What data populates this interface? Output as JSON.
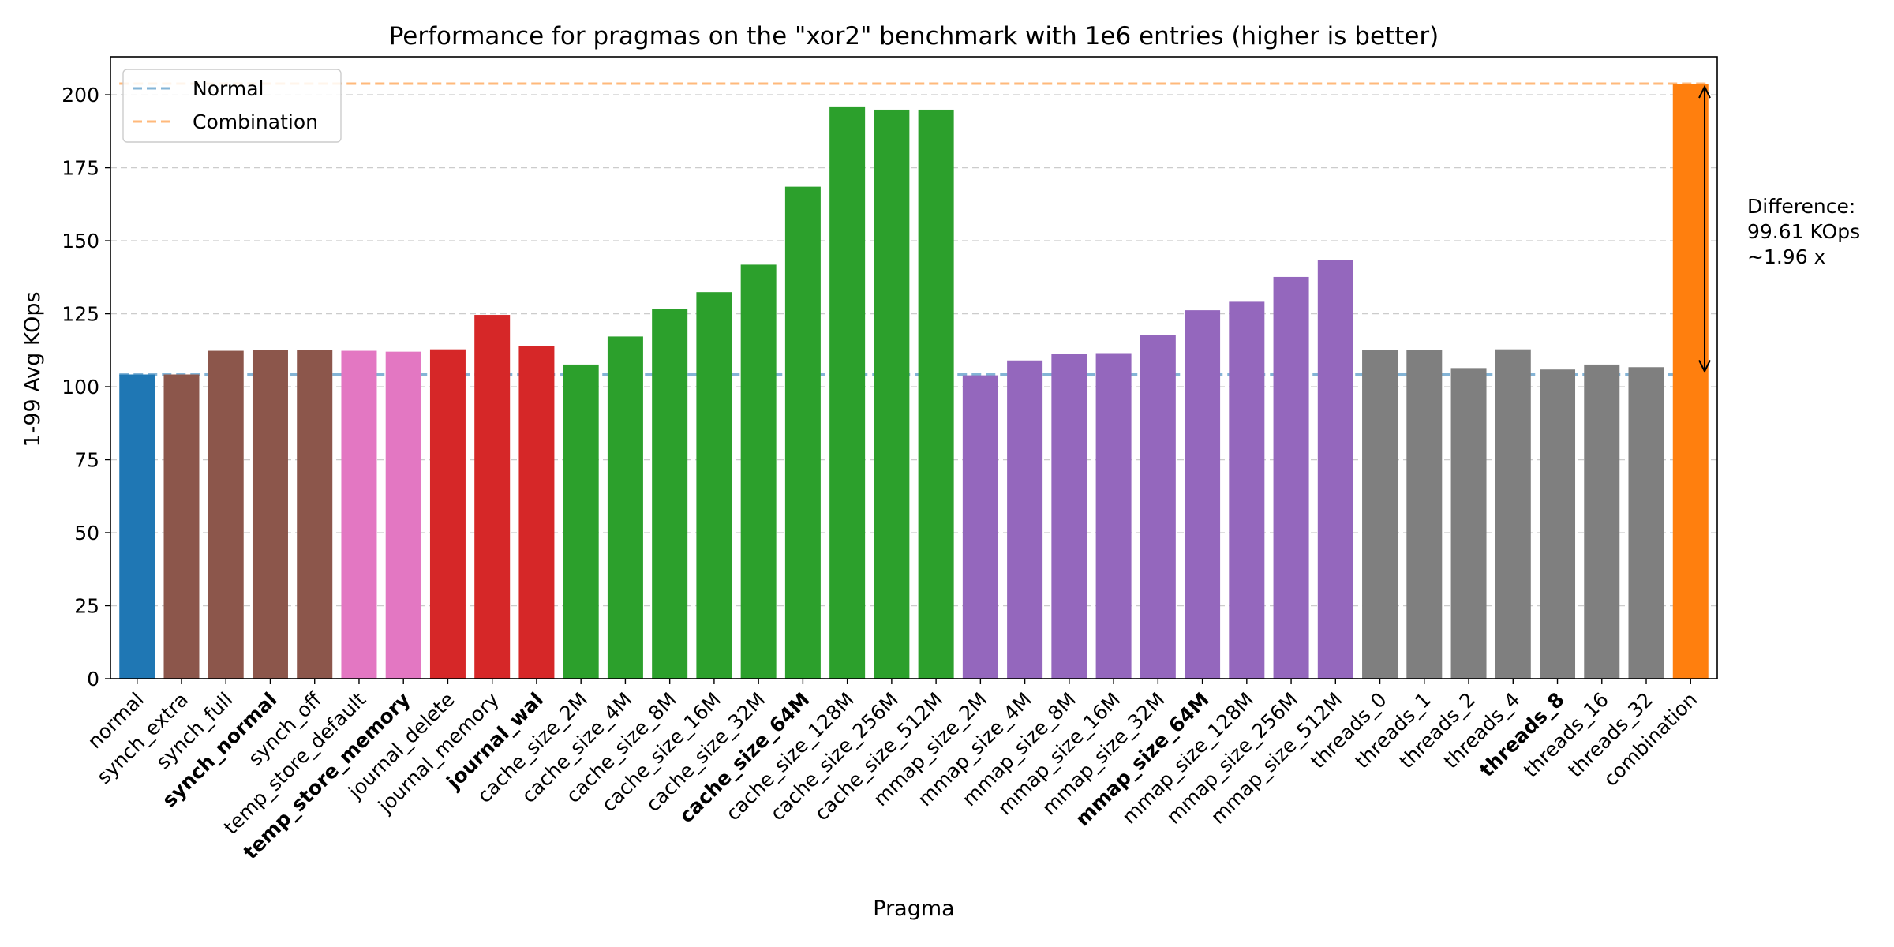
{
  "chart_data": {
    "type": "bar",
    "title": "Performance for pragmas on the \"xor2\" benchmark with 1e6 entries (higher is better)",
    "xlabel": "Pragma",
    "ylabel": "1-99 Avg KOps",
    "ylim": [
      0,
      213
    ],
    "yticks": [
      0,
      25,
      50,
      75,
      100,
      125,
      150,
      175,
      200
    ],
    "grid": "y-dashed",
    "legend_position": "top-left",
    "categories": [
      "normal",
      "synch_extra",
      "synch_full",
      "synch_normal",
      "synch_off",
      "temp_store_default",
      "temp_store_memory",
      "journal_delete",
      "journal_memory",
      "journal_wal",
      "cache_size_2M",
      "cache_size_4M",
      "cache_size_8M",
      "cache_size_16M",
      "cache_size_32M",
      "cache_size_64M",
      "cache_size_128M",
      "cache_size_256M",
      "cache_size_512M",
      "mmap_size_2M",
      "mmap_size_4M",
      "mmap_size_8M",
      "mmap_size_16M",
      "mmap_size_32M",
      "mmap_size_64M",
      "mmap_size_128M",
      "mmap_size_256M",
      "mmap_size_512M",
      "threads_0",
      "threads_1",
      "threads_2",
      "threads_4",
      "threads_8",
      "threads_16",
      "threads_32",
      "combination"
    ],
    "values": [
      104.2,
      104.2,
      112.3,
      112.6,
      112.6,
      112.3,
      112.0,
      112.8,
      124.6,
      113.9,
      107.6,
      117.2,
      126.7,
      132.4,
      141.8,
      168.5,
      196.0,
      194.9,
      194.9,
      103.9,
      109.0,
      111.3,
      111.5,
      117.7,
      126.2,
      129.1,
      137.6,
      143.3,
      112.6,
      112.6,
      106.4,
      112.8,
      105.9,
      107.6,
      106.7,
      203.8
    ],
    "colors": [
      "#1f77b4",
      "#8c564b",
      "#8c564b",
      "#8c564b",
      "#8c564b",
      "#e377c2",
      "#e377c2",
      "#d62728",
      "#d62728",
      "#d62728",
      "#2ca02c",
      "#2ca02c",
      "#2ca02c",
      "#2ca02c",
      "#2ca02c",
      "#2ca02c",
      "#2ca02c",
      "#2ca02c",
      "#2ca02c",
      "#9467bd",
      "#9467bd",
      "#9467bd",
      "#9467bd",
      "#9467bd",
      "#9467bd",
      "#9467bd",
      "#9467bd",
      "#9467bd",
      "#7f7f7f",
      "#7f7f7f",
      "#7f7f7f",
      "#7f7f7f",
      "#7f7f7f",
      "#7f7f7f",
      "#7f7f7f",
      "#ff7f0e"
    ],
    "bold_categories": [
      "synch_normal",
      "temp_store_memory",
      "journal_wal",
      "cache_size_64M",
      "mmap_size_64M",
      "threads_8"
    ],
    "reference_lines": [
      {
        "name": "Normal",
        "value": 104.2,
        "color": "#1f77b4"
      },
      {
        "name": "Combination",
        "value": 203.8,
        "color": "#ff7f0e"
      }
    ],
    "annotation": {
      "lines": [
        "Difference:",
        "99.61 KOps",
        "~1.96 x"
      ]
    }
  }
}
